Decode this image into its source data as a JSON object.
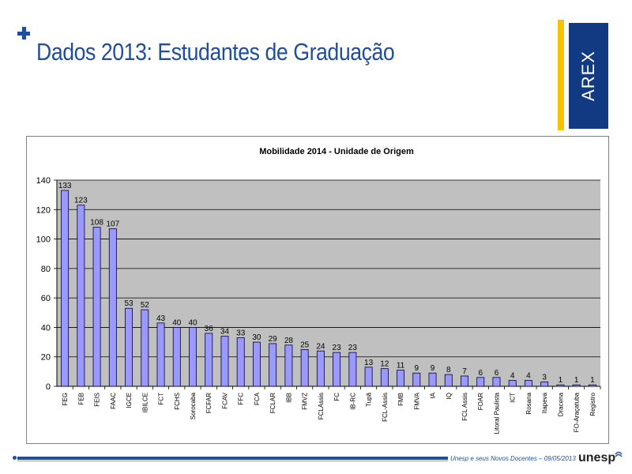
{
  "slide": {
    "title": "Dados 2013: Estudantes de Graduação",
    "brand_label": "AREX",
    "footer_text": "Unesp e seus Novos Docentes – 09/05/2013",
    "footer_logo": "unesp",
    "colors": {
      "accent": "#1f4e9b",
      "brand_box": "#123a82",
      "brand_bar": "#f5c400",
      "bar_fill": "#9999ff",
      "plot_bg": "#c0c0c0"
    }
  },
  "chart_data": {
    "type": "bar",
    "title": "Mobilidade 2014 - Unidade de Origem",
    "categories": [
      "FEG",
      "FEB",
      "FEIS",
      "FAAC",
      "IGCE",
      "IBILCE",
      "FCT",
      "FCHS",
      "Sorocaba",
      "FCFAR",
      "FCAV",
      "FFC",
      "FCA",
      "FCLAR",
      "IBB",
      "FMVZ",
      "FCLAssis",
      "FC",
      "IB-RC",
      "Tupã",
      "FCL-Assis",
      "FMB",
      "FMVA",
      "IA",
      "IQ",
      "FCL Assis",
      "FOAR",
      "Litoral Paulista",
      "ICT",
      "Rosana",
      "Itapeva",
      "Dracena",
      "FO-Araçatuba",
      "Registro"
    ],
    "values": [
      133,
      123,
      108,
      107,
      53,
      52,
      43,
      40,
      40,
      36,
      34,
      33,
      30,
      29,
      28,
      25,
      24,
      23,
      23,
      13,
      12,
      11,
      9,
      9,
      8,
      7,
      6,
      6,
      4,
      4,
      3,
      1,
      1,
      1
    ],
    "ylim": [
      0,
      140
    ],
    "yticks": [
      0,
      20,
      40,
      60,
      80,
      100,
      120,
      140
    ],
    "grid": true,
    "data_labels": true
  }
}
